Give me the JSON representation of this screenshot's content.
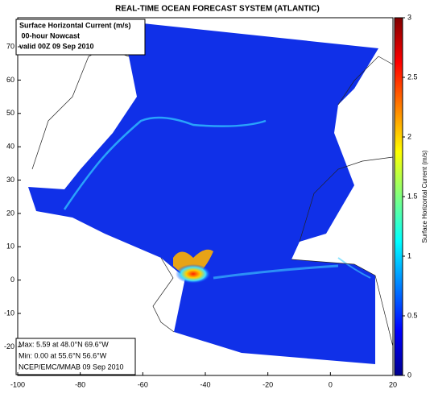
{
  "chart_data": {
    "type": "map",
    "title": "REAL-TIME OCEAN FORECAST SYSTEM (ATLANTIC)",
    "info_lines": [
      "Surface Horizontal Current (m/s)",
      " 00-hour Nowcast",
      "valid 00Z 09 Sep 2010"
    ],
    "stats_lines": [
      "Max: 5.59 at 48.0°N 69.6°W",
      "Min: 0.00 at 55.6°N 56.6°W",
      "NCEP/EMC/MMAB 09 Sep 2010"
    ],
    "xlim": [
      -100,
      20
    ],
    "xticks": [
      -100,
      -80,
      -60,
      -40,
      -20,
      0,
      20
    ],
    "ylim": [
      -28.6,
      78.7
    ],
    "yticks": [
      -20,
      -10,
      0,
      10,
      20,
      30,
      40,
      50,
      60,
      70
    ],
    "colorbar": {
      "label": "Surface Horizontal Current (m/s)",
      "lim": [
        0,
        3
      ],
      "ticks": [
        0,
        0.5,
        1,
        1.5,
        2,
        2.5,
        3
      ]
    }
  }
}
